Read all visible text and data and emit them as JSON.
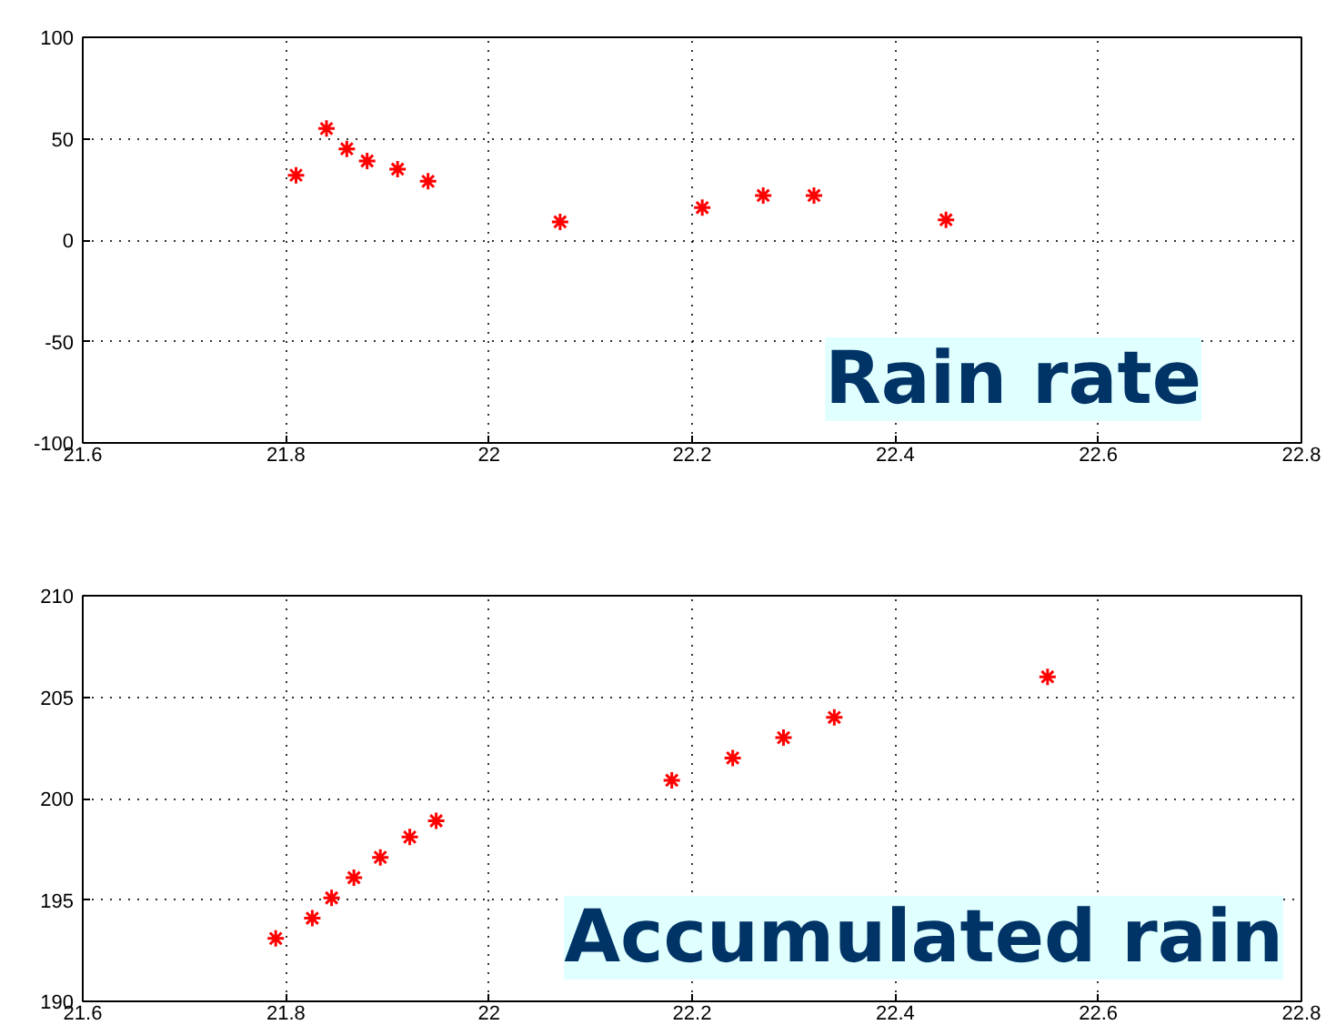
{
  "chart_data": [
    {
      "type": "scatter",
      "x": [
        21.81,
        21.84,
        21.86,
        21.88,
        21.91,
        21.94,
        22.07,
        22.21,
        22.27,
        22.32,
        22.45
      ],
      "values": [
        32,
        55,
        45,
        39,
        35,
        29,
        9,
        16,
        22,
        22,
        10
      ],
      "color": "#ff0000",
      "marker": "cross",
      "grid": true,
      "xlim": [
        21.6,
        22.8
      ],
      "xticks": [
        21.6,
        21.8,
        22,
        22.2,
        22.4,
        22.6,
        22.8
      ],
      "ylim": [
        -100,
        100
      ],
      "yticks": [
        -100,
        -50,
        0,
        50,
        100
      ],
      "annotations": [
        "Rain rate"
      ]
    },
    {
      "type": "scatter",
      "x": [
        21.79,
        21.826,
        21.845,
        21.867,
        21.893,
        21.922,
        21.948,
        22.18,
        22.24,
        22.29,
        22.34,
        22.55
      ],
      "values": [
        193.1,
        194.1,
        195.1,
        196.1,
        197.1,
        198.1,
        198.9,
        200.9,
        202,
        203,
        204,
        206
      ],
      "color": "#ff0000",
      "marker": "cross",
      "grid": true,
      "xlim": [
        21.6,
        22.8
      ],
      "xticks": [
        21.6,
        21.8,
        22,
        22.2,
        22.4,
        22.6,
        22.8
      ],
      "ylim": [
        190,
        210
      ],
      "yticks": [
        190,
        195,
        200,
        205,
        210
      ],
      "annotations": [
        "Accumulated rain"
      ]
    }
  ]
}
